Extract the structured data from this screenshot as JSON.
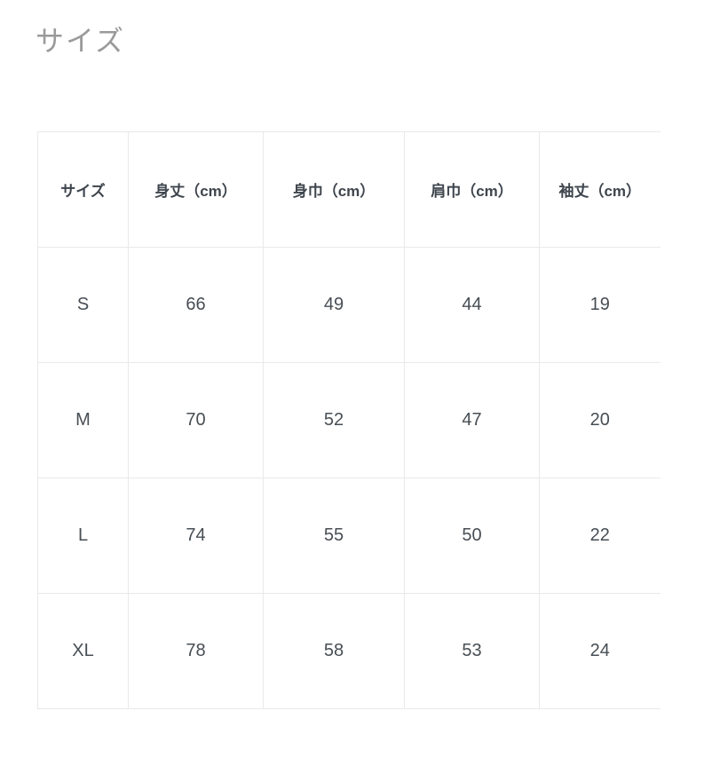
{
  "page": {
    "title": "サイズ"
  },
  "size_table": {
    "headers": [
      "サイズ",
      "身丈（cm）",
      "身巾（cm）",
      "肩巾（cm）",
      "袖丈（cm）"
    ],
    "rows": [
      {
        "size": "S",
        "values": [
          "66",
          "49",
          "44",
          "19"
        ]
      },
      {
        "size": "M",
        "values": [
          "70",
          "52",
          "47",
          "20"
        ]
      },
      {
        "size": "L",
        "values": [
          "74",
          "55",
          "50",
          "22"
        ]
      },
      {
        "size": "XL",
        "values": [
          "78",
          "58",
          "53",
          "24"
        ]
      }
    ]
  },
  "colors": {
    "title_text": "#9a9a9a",
    "header_text": "#3e454d",
    "cell_text": "#474e54",
    "table_border": "#e9e9e9",
    "background": "#ffffff"
  }
}
